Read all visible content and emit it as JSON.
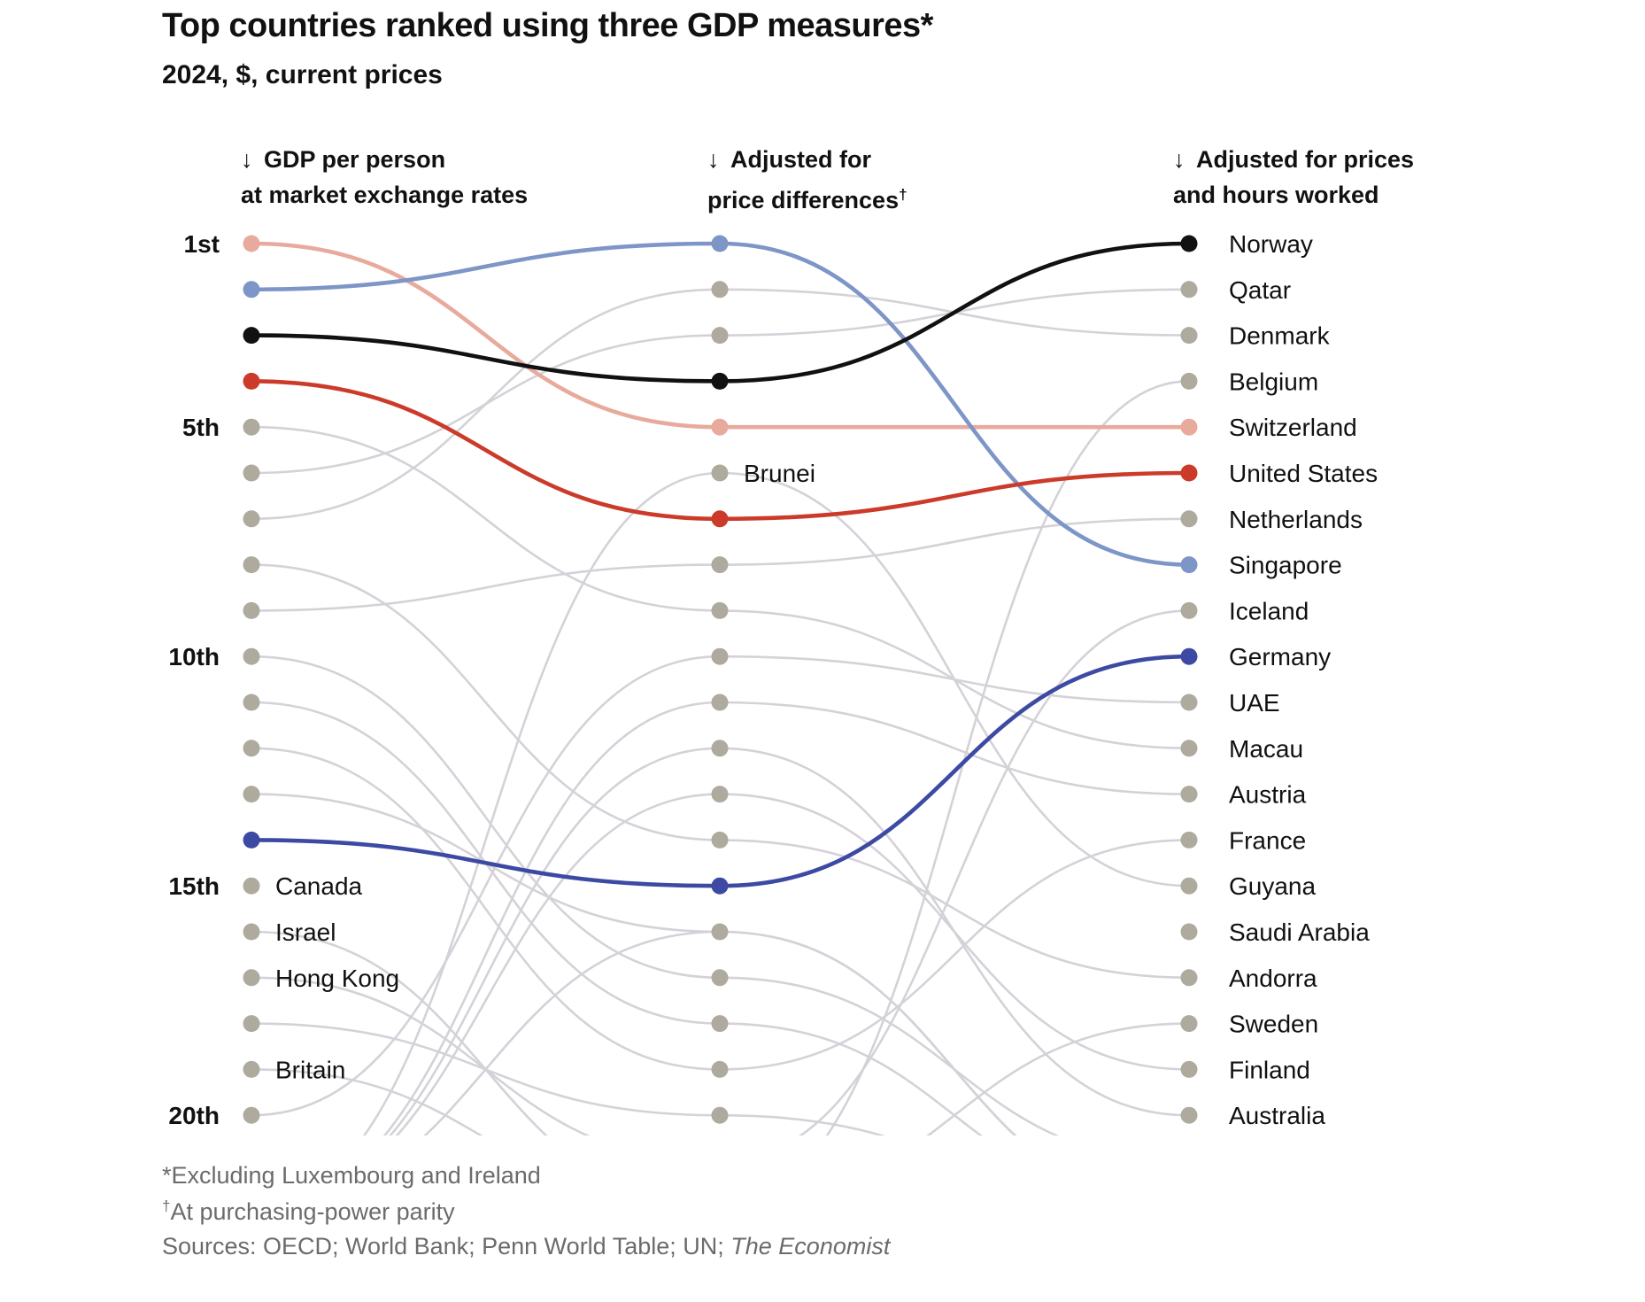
{
  "chart_data": {
    "type": "bump",
    "title": "Top countries ranked using three GDP measures*",
    "subtitle": "2024, $, current prices",
    "columns": [
      {
        "arrow": "↓",
        "line1": "GDP per person",
        "line2": "at market exchange rates",
        "mark": ""
      },
      {
        "arrow": "↓",
        "line1": "Adjusted for",
        "line2": "price differences",
        "mark": "†"
      },
      {
        "arrow": "↓",
        "line1": "Adjusted for prices",
        "line2": "and hours worked",
        "mark": ""
      }
    ],
    "rank_labels": [
      {
        "rank": 1,
        "label": "1st"
      },
      {
        "rank": 5,
        "label": "5th"
      },
      {
        "rank": 10,
        "label": "10th"
      },
      {
        "rank": 15,
        "label": "15th"
      },
      {
        "rank": 20,
        "label": "20th"
      }
    ],
    "max_rank": 20,
    "highlight": [
      {
        "name": "Switzerland",
        "color": "#e8aa9c",
        "ranks": [
          1,
          5,
          5
        ]
      },
      {
        "name": "Singapore",
        "color": "#7d95c7",
        "ranks": [
          2,
          1,
          8
        ]
      },
      {
        "name": "Norway",
        "color": "#111111",
        "ranks": [
          3,
          4,
          1
        ]
      },
      {
        "name": "United States",
        "color": "#cc3b2a",
        "ranks": [
          4,
          7,
          6
        ]
      },
      {
        "name": "Germany",
        "color": "#3d4aa3",
        "ranks": [
          14,
          15,
          10
        ]
      }
    ],
    "background": [
      {
        "ranks": [
          5,
          9,
          12
        ]
      },
      {
        "ranks": [
          6,
          3,
          2
        ]
      },
      {
        "ranks": [
          7,
          2,
          3
        ]
      },
      {
        "ranks": [
          8,
          14,
          17
        ]
      },
      {
        "ranks": [
          9,
          8,
          7
        ]
      },
      {
        "ranks": [
          10,
          17,
          21
        ]
      },
      {
        "ranks": [
          11,
          18,
          22
        ]
      },
      {
        "ranks": [
          12,
          19,
          14
        ]
      },
      {
        "ranks": [
          13,
          16,
          22
        ]
      },
      {
        "ranks": [
          16,
          22,
          4
        ]
      },
      {
        "ranks": [
          17,
          21,
          9
        ]
      },
      {
        "ranks": [
          18,
          20,
          22
        ]
      },
      {
        "ranks": [
          19,
          22,
          18
        ]
      },
      {
        "ranks": [
          20,
          10,
          11
        ]
      },
      {
        "ranks": [
          22,
          12,
          20
        ]
      },
      {
        "ranks": [
          22,
          13,
          19
        ]
      },
      {
        "ranks": [
          22,
          11,
          13
        ]
      },
      {
        "ranks": [
          22,
          6,
          15
        ]
      },
      {
        "ranks": [
          22,
          16,
          22
        ]
      }
    ],
    "point_labels": [
      {
        "col": 0,
        "rank": 15,
        "text": "Canada"
      },
      {
        "col": 0,
        "rank": 16,
        "text": "Israel"
      },
      {
        "col": 0,
        "rank": 17,
        "text": "Hong Kong"
      },
      {
        "col": 0,
        "rank": 19,
        "text": "Britain"
      },
      {
        "col": 1,
        "rank": 6,
        "text": "Brunei"
      }
    ],
    "right_labels": [
      "Norway",
      "Qatar",
      "Denmark",
      "Belgium",
      "Switzerland",
      "United States",
      "Netherlands",
      "Singapore",
      "Iceland",
      "Germany",
      "UAE",
      "Macau",
      "Austria",
      "France",
      "Guyana",
      "Saudi Arabia",
      "Andorra",
      "Sweden",
      "Finland",
      "Australia"
    ],
    "colors": {
      "dot_default": "#aeaa9d",
      "line_default": "#d4d2d8",
      "label_dark": "#111111"
    }
  },
  "footnotes": {
    "note1": "*Excluding Luxembourg and Ireland",
    "note2_mark": "†",
    "note2_text": "At purchasing-power parity",
    "sources_prefix": "Sources: OECD; World Bank; Penn World Table; UN; ",
    "sources_italic": "The Economist"
  }
}
